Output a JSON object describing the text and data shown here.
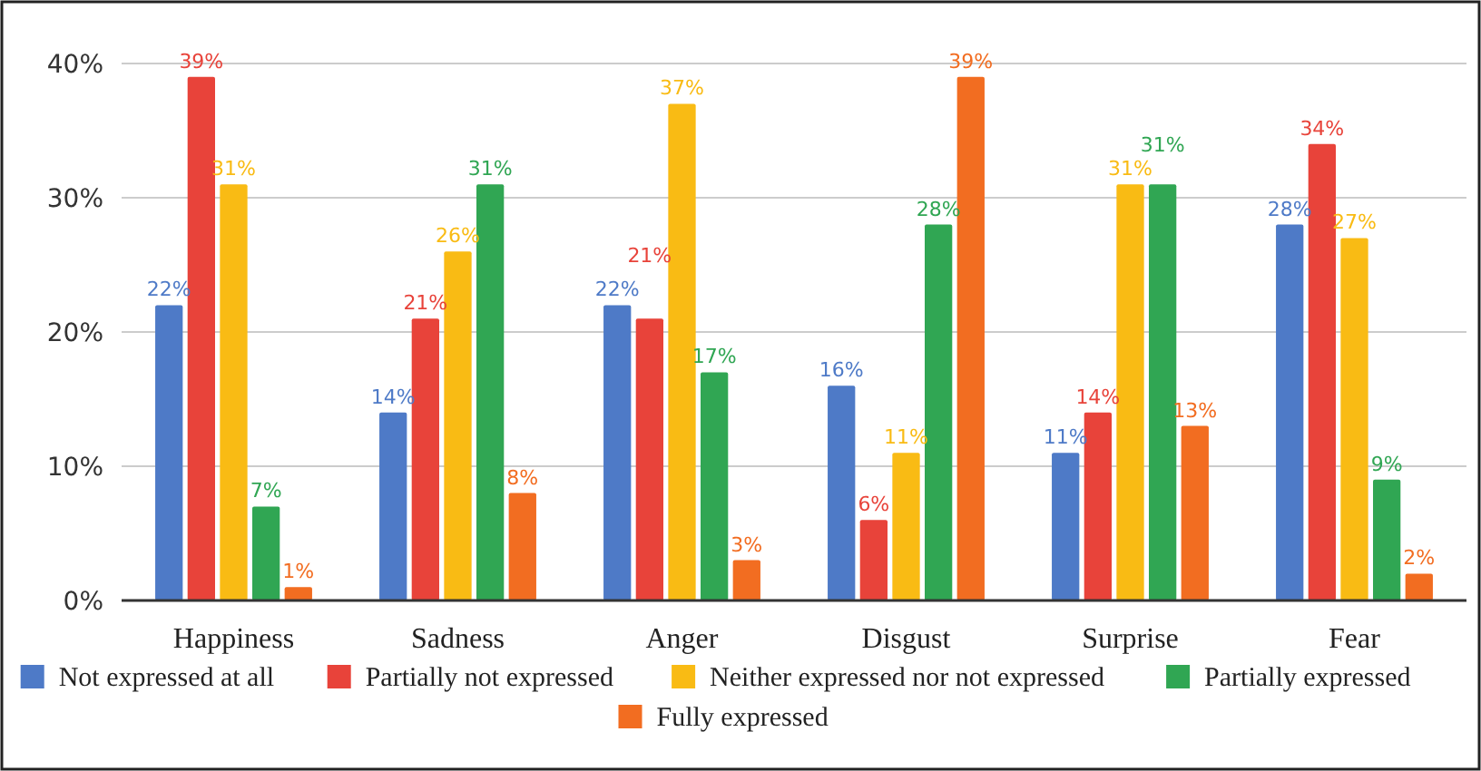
{
  "chart_data": {
    "type": "bar",
    "categories": [
      "Happiness",
      "Sadness",
      "Anger",
      "Disgust",
      "Surprise",
      "Fear"
    ],
    "series": [
      {
        "name": "Not expressed at all",
        "color": "#4e7ac7",
        "values": [
          22,
          14,
          22,
          16,
          11,
          28
        ],
        "value_labels": [
          "22%",
          "14%",
          "22%",
          "16%",
          "11%",
          "28%"
        ]
      },
      {
        "name": "Partially not expressed",
        "color": "#e8433a",
        "values": [
          39,
          21,
          21,
          6,
          14,
          34
        ],
        "value_labels": [
          "39%",
          "21%",
          "21%",
          "6%",
          "14%",
          "34%"
        ]
      },
      {
        "name": "Neither expressed nor not expressed",
        "color": "#f9bb14",
        "values": [
          31,
          26,
          37,
          11,
          31,
          27
        ],
        "value_labels": [
          "31%",
          "26%",
          "37%",
          "11%",
          "31%",
          "27%"
        ]
      },
      {
        "name": "Partially expressed",
        "color": "#30a653",
        "values": [
          7,
          31,
          17,
          28,
          31,
          9
        ],
        "value_labels": [
          "7%",
          "31%",
          "17%",
          "28%",
          "31%",
          "9%"
        ]
      },
      {
        "name": "Fully expressed",
        "color": "#f26d21",
        "values": [
          1,
          8,
          3,
          39,
          13,
          2
        ],
        "value_labels": [
          "1%",
          "8%",
          "3%",
          "39%",
          "13%",
          "2%"
        ]
      }
    ],
    "ylim": [
      0,
      40
    ],
    "yticks": [
      {
        "value": 0,
        "label": "0%"
      },
      {
        "value": 10,
        "label": "10%"
      },
      {
        "value": 20,
        "label": "20%"
      },
      {
        "value": 30,
        "label": "30%"
      },
      {
        "value": 40,
        "label": "40%"
      }
    ],
    "grid": "y",
    "legend": "bottom"
  }
}
